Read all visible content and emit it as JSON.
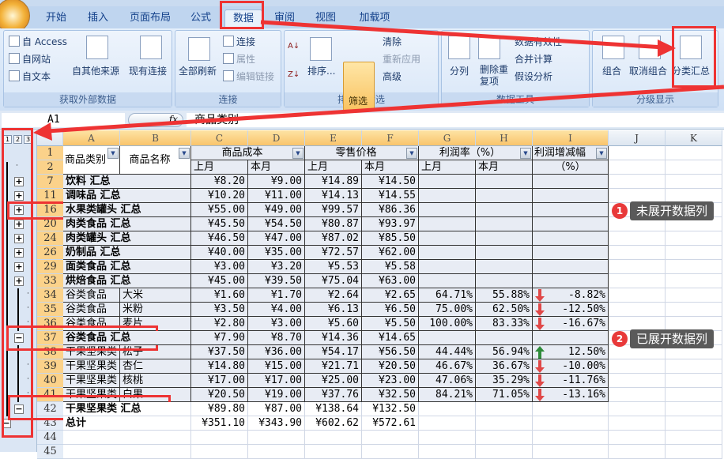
{
  "ribbon": {
    "tabs": [
      "开始",
      "插入",
      "页面布局",
      "公式",
      "数据",
      "审阅",
      "视图",
      "加载项"
    ],
    "active_tab": "数据",
    "groups": {
      "external": {
        "label": "获取外部数据",
        "from_access": "自 Access",
        "from_web": "自网站",
        "from_text": "自文本",
        "other_sources": "自其他来源",
        "existing": "现有连接"
      },
      "connections": {
        "label": "连接",
        "refresh_all": "全部刷新",
        "connections": "连接",
        "properties": "属性",
        "edit_links": "编辑链接"
      },
      "sort_filter": {
        "label": "排序和筛选",
        "sort": "排序...",
        "filter": "筛选",
        "clear": "清除",
        "reapply": "重新应用",
        "advanced": "高级"
      },
      "data_tools": {
        "label": "数据工具",
        "text_to_columns": "分列",
        "remove_dup": "删除重复项",
        "validation": "数据有效性",
        "consolidate": "合并计算",
        "what_if": "假设分析"
      },
      "outline": {
        "label": "分级显示",
        "group": "组合",
        "ungroup": "取消组合",
        "subtotal": "分类汇总"
      }
    }
  },
  "formula_bar": {
    "name_box": "A1",
    "fx": "fx",
    "value": "商品类别"
  },
  "outline": {
    "levels": [
      "1",
      "2",
      "3"
    ]
  },
  "columns": [
    "A",
    "B",
    "C",
    "D",
    "E",
    "F",
    "G",
    "H",
    "I",
    "J",
    "K"
  ],
  "headers": {
    "category": "商品类别",
    "name": "商品名称",
    "cost": "商品成本",
    "retail": "零售价格",
    "margin": "利润率（%）",
    "change": "利润增减幅",
    "change2": "（%）",
    "last": "上月",
    "this": "本月",
    "row1": "1",
    "row2": "2"
  },
  "rows": [
    {
      "n": "7",
      "a": "饮料 汇总",
      "b": "",
      "c": "¥8.20",
      "d": "¥9.00",
      "e": "¥14.89",
      "f": "¥14.50",
      "g": "",
      "h": "",
      "i": "",
      "dir": "",
      "type": "sum",
      "btn": "+"
    },
    {
      "n": "11",
      "a": "调味品 汇总",
      "b": "",
      "c": "¥10.20",
      "d": "¥11.00",
      "e": "¥14.13",
      "f": "¥14.55",
      "g": "",
      "h": "",
      "i": "",
      "dir": "",
      "type": "sum",
      "btn": "+"
    },
    {
      "n": "16",
      "a": "水果类罐头 汇总",
      "b": "",
      "c": "¥55.00",
      "d": "¥49.00",
      "e": "¥99.57",
      "f": "¥86.36",
      "g": "",
      "h": "",
      "i": "",
      "dir": "",
      "type": "sum",
      "btn": "+"
    },
    {
      "n": "20",
      "a": "肉类食品 汇总",
      "b": "",
      "c": "¥45.50",
      "d": "¥54.50",
      "e": "¥80.87",
      "f": "¥93.97",
      "g": "",
      "h": "",
      "i": "",
      "dir": "",
      "type": "sum",
      "btn": "+"
    },
    {
      "n": "24",
      "a": "肉类罐头 汇总",
      "b": "",
      "c": "¥46.50",
      "d": "¥47.00",
      "e": "¥87.02",
      "f": "¥85.50",
      "g": "",
      "h": "",
      "i": "",
      "dir": "",
      "type": "sum",
      "btn": "+"
    },
    {
      "n": "26",
      "a": "奶制品 汇总",
      "b": "",
      "c": "¥40.00",
      "d": "¥35.00",
      "e": "¥72.57",
      "f": "¥62.00",
      "g": "",
      "h": "",
      "i": "",
      "dir": "",
      "type": "sum",
      "btn": "+"
    },
    {
      "n": "29",
      "a": "面类食品 汇总",
      "b": "",
      "c": "¥3.00",
      "d": "¥3.20",
      "e": "¥5.53",
      "f": "¥5.58",
      "g": "",
      "h": "",
      "i": "",
      "dir": "",
      "type": "sum",
      "btn": "+"
    },
    {
      "n": "33",
      "a": "烘焙食品 汇总",
      "b": "",
      "c": "¥45.00",
      "d": "¥39.50",
      "e": "¥75.04",
      "f": "¥63.00",
      "g": "",
      "h": "",
      "i": "",
      "dir": "",
      "type": "sum",
      "btn": "+"
    },
    {
      "n": "34",
      "a": "谷类食品",
      "b": "大米",
      "c": "¥1.60",
      "d": "¥1.70",
      "e": "¥2.64",
      "f": "¥2.65",
      "g": "64.71%",
      "h": "55.88%",
      "i": "-8.82%",
      "dir": "down",
      "type": "detail",
      "btn": "."
    },
    {
      "n": "35",
      "a": "谷类食品",
      "b": "米粉",
      "c": "¥3.50",
      "d": "¥4.00",
      "e": "¥6.13",
      "f": "¥6.50",
      "g": "75.00%",
      "h": "62.50%",
      "i": "-12.50%",
      "dir": "down",
      "type": "detail",
      "btn": "."
    },
    {
      "n": "36",
      "a": "谷类食品",
      "b": "麦片",
      "c": "¥2.80",
      "d": "¥3.00",
      "e": "¥5.60",
      "f": "¥5.50",
      "g": "100.00%",
      "h": "83.33%",
      "i": "-16.67%",
      "dir": "down",
      "type": "detail",
      "btn": "."
    },
    {
      "n": "37",
      "a": "谷类食品 汇总",
      "b": "",
      "c": "¥7.90",
      "d": "¥8.70",
      "e": "¥14.36",
      "f": "¥14.65",
      "g": "",
      "h": "",
      "i": "",
      "dir": "",
      "type": "sum",
      "btn": "-"
    },
    {
      "n": "38",
      "a": "干果坚果类",
      "b": "松子",
      "c": "¥37.50",
      "d": "¥36.00",
      "e": "¥54.17",
      "f": "¥56.50",
      "g": "44.44%",
      "h": "56.94%",
      "i": "12.50%",
      "dir": "up",
      "type": "detail",
      "btn": "."
    },
    {
      "n": "39",
      "a": "干果坚果类",
      "b": "杏仁",
      "c": "¥14.80",
      "d": "¥15.00",
      "e": "¥21.71",
      "f": "¥20.50",
      "g": "46.67%",
      "h": "36.67%",
      "i": "-10.00%",
      "dir": "down",
      "type": "detail",
      "btn": "."
    },
    {
      "n": "40",
      "a": "干果坚果类",
      "b": "核桃",
      "c": "¥17.00",
      "d": "¥17.00",
      "e": "¥25.00",
      "f": "¥23.00",
      "g": "47.06%",
      "h": "35.29%",
      "i": "-11.76%",
      "dir": "down",
      "type": "detail",
      "btn": "."
    },
    {
      "n": "41",
      "a": "干果坚果类",
      "b": "白果",
      "c": "¥20.50",
      "d": "¥19.00",
      "e": "¥37.76",
      "f": "¥32.50",
      "g": "84.21%",
      "h": "71.05%",
      "i": "-13.16%",
      "dir": "down",
      "type": "detail",
      "btn": "."
    },
    {
      "n": "42",
      "a": "干果坚果类 汇总",
      "b": "",
      "c": "¥89.80",
      "d": "¥87.00",
      "e": "¥138.64",
      "f": "¥132.50",
      "g": "",
      "h": "",
      "i": "",
      "dir": "",
      "type": "outsum",
      "btn": "-"
    },
    {
      "n": "43",
      "a": "总计",
      "b": "",
      "c": "¥351.10",
      "d": "¥343.90",
      "e": "¥602.62",
      "f": "¥572.61",
      "g": "",
      "h": "",
      "i": "",
      "dir": "",
      "type": "total",
      "btn": "-"
    },
    {
      "n": "44",
      "a": "",
      "b": "",
      "c": "",
      "d": "",
      "e": "",
      "f": "",
      "g": "",
      "h": "",
      "i": "",
      "dir": "",
      "type": "empty",
      "btn": ""
    },
    {
      "n": "45",
      "a": "",
      "b": "",
      "c": "",
      "d": "",
      "e": "",
      "f": "",
      "g": "",
      "h": "",
      "i": "",
      "dir": "",
      "type": "empty",
      "btn": ""
    }
  ],
  "annotations": {
    "one_num": "1",
    "one": "未展开数据列",
    "two_num": "2",
    "two": "已展开数据列"
  },
  "colors": {
    "accent_red": "#ee3333",
    "up": "#2e8b3a",
    "down": "#e04848",
    "table_fill": "#e8ecf4"
  }
}
